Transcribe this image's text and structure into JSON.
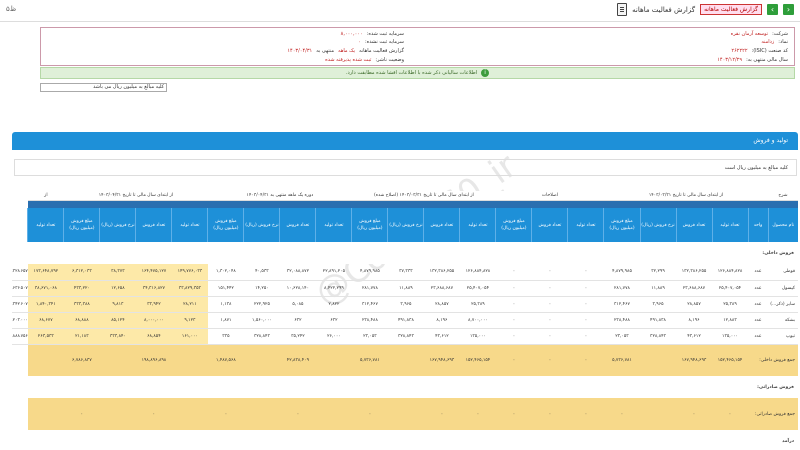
{
  "topbar": {
    "left_text": "۵ظ",
    "title": "گزارش فعالیت ماهانه",
    "badge": "گزارش فعالیت ماهانه",
    "nav_prev": "‹",
    "nav_next": "›"
  },
  "company_info": {
    "company_label": "شرکت:",
    "company_value": "توسعه آرمان نقره",
    "symbol_label": "نماد:",
    "symbol_value": "زدامنه",
    "isic_label": "کد صنعت (ISIC):",
    "isic_value": "۲۶۲۲۲۲",
    "fiscal_label": "سال مالی منتهی به:",
    "fiscal_value": "۱۴۰۳/۱۲/۲۹",
    "capital_label": "سرمایه ثبت شده:",
    "capital_value": "۸,۰۰۰,۰۰۰",
    "unreg_capital_label": "سرمایه ثبت نشده:",
    "unreg_capital_value": "۰",
    "report_label": "گزارش فعالیت ماهانه",
    "period_label": "یک ماهه",
    "period_value": "منتهی به",
    "period_date": "۱۴۰۳/۰۴/۳۱",
    "status_label": "وضعیت ناشر:",
    "status_value": "ثبت شده پذیرفته شده"
  },
  "success_message": "اطلاعات سالیانی ذکر شده با اطلاعات افشا شده مطابقت دارد.",
  "select_value": "کلیه مبالغ به میلیون ریال می باشد",
  "section": {
    "title": "تولید و فروش",
    "note": "کلیه مبالغ به میلیون ریال است"
  },
  "table": {
    "group_headers": [
      "شرح",
      "از ابتدای سال مالی تا تاریخ ۱۴۰۳/۰۳/۳۱",
      "اصلاحات",
      "از ابتدای سال مالی تا تاریخ ۱۴۰۳/۰۳/۳۱ (اصلاح شده)",
      "دوره یک ماهه منتهی به ۱۴۰۳/۰۴/۳۱",
      "از ابتدای سال مالی تا تاریخ ۱۴۰۳/۰۴/۳۱",
      "از"
    ],
    "col_headers": [
      "نام محصول",
      "واحد",
      "تعداد تولید",
      "تعداد فروش",
      "نرخ فروش (ریال)",
      "مبلغ فروش (میلیون ریال)",
      "تعداد تولید",
      "تعداد فروش",
      "مبلغ فروش (میلیون ریال)",
      "تعداد تولید",
      "تعداد فروش",
      "نرخ فروش (ریال)",
      "مبلغ فروش (میلیون ریال)",
      "تعداد تولید",
      "تعداد فروش",
      "نرخ فروش (ریال)",
      "مبلغ فروش (میلیون ریال)",
      "تعداد تولید",
      "تعداد فروش",
      "نرخ فروش (ریال)",
      "مبلغ فروش (میلیون ریال)",
      "تعداد تولید"
    ],
    "group_domestic": "فروش داخلی:",
    "rows": [
      {
        "name": "قوطی",
        "unit": "عدد",
        "cells": [
          "۱۲۶,۸۸۴,۸۲۸",
          "۱۳۲,۳۸۶,۲۵۵",
          "۳۲,۲۹۹",
          "۴,۸۷۹,۹۸۵",
          "۰",
          "۰",
          "۰",
          "۱۲۶,۸۸۴,۸۲۸",
          "۱۳۲,۳۸۶,۲۵۵",
          "۳۷,۳۳۳",
          "۴,۸۷۹,۹۸۵",
          "۲۲,۸۹۱,۲۰۵",
          "۳۲,۰۸۸,۸۷۲",
          "۴۰,۵۳۳",
          "۱,۳۰۲,۰۴۸",
          "۱۴۹,۷۷۶,۰۳۳",
          "۱۶۴,۴۷۵,۱۲۷",
          "۳۸,۳۷۳",
          "۶,۳۱۲,۰۳۳",
          "۱۷۳,۶۴۸,۷۹۲",
          "۱۶۴,۷۷۲,۶۵۷",
          "۳۸,۳۲۸"
        ]
      },
      {
        "name": "کپسول",
        "unit": "عدد",
        "cells": [
          "۲۵,۴۰۷,۰۵۴",
          "۲۳,۶۸۸,۶۸۷",
          "۱۱,۸۸۹",
          "۲۸۱,۷۷۸",
          "۰",
          "۰",
          "۰",
          "۲۵,۴۰۷,۰۵۴",
          "۲۳,۶۸۸,۶۸۷",
          "۱۱,۸۸۹",
          "۲۸۱,۷۷۸",
          "۸,۴۲۲,۲۹۹",
          "۱۰,۶۲۸,۱۴۰",
          "۱۴,۲۵۰",
          "۱۵۱,۴۴۲",
          "۳۳,۸۲۹,۳۵۳",
          "۳۴,۳۱۶,۸۲۷",
          "۱۲,۶۵۸",
          "۴۳۳,۲۲۰",
          "۳۸,۶۷۱,۰۶۸",
          "۳۸,۱۵۲,۵۰۷",
          "۱۳,۶۳۶"
        ]
      },
      {
        "name": "سایر (ذکر...)",
        "unit": "عدد",
        "cells": [
          "۲۵,۳۸۹",
          "۲۸,۸۵۷",
          "۳,۹۶۵",
          "۳۱۲,۴۶۷",
          "۰",
          "۰",
          "۰",
          "۲۵,۳۸۹",
          "۲۸,۸۵۷",
          "۳,۹۶۵",
          "۳۱۲,۴۶۷",
          "۲,۸۲۲",
          "۵,۰۸۵",
          "۲۲۲,۹۲۵",
          "۱,۱۳۸",
          "۲۸,۲۱۱",
          "۳۳,۹۴۲",
          "۹,۸۱۳",
          "۳۳۳,۳۸۸",
          "۱,۸۴۰,۳۴۱",
          "۱۷۸,۶۰۷",
          "۹,۳۴۲"
        ]
      },
      {
        "name": "بشکه",
        "unit": "عدد",
        "cells": [
          "۱۲,۸۸۳",
          "۸,۱۹۶",
          "۴۹۱,۸۳۸",
          "۲۳۸,۴۸۸",
          "۰",
          "۰",
          "۰",
          "۸,۷۰۰,۰۰۰",
          "۸,۱۹۶",
          "۴۹۱,۸۳۸",
          "۲۳۸,۴۸۸",
          "۶۳۲",
          "۶۳۲",
          "۱,۵۶۰,۰۰۰",
          "۱,۸۷۱",
          "۹,۱۲۳",
          "۸,۰۰۰,۰۰۰",
          "۸۵,۱۲۴",
          "۶۸,۸۸۸",
          "۶۸,۶۷۷",
          "۶۶,۰۰۰",
          "۶۶,۲۰۳"
        ]
      },
      {
        "name": "تیوپ",
        "unit": "عدد",
        "cells": [
          "۱۳۵,۰۰۰",
          "۴۳,۶۱۲",
          "۳۲۸,۸۴۳",
          "۲۳,۰۵۳",
          "۰",
          "۰",
          "۰",
          "۱۳۵,۰۰۰",
          "۴۳,۶۱۲",
          "۳۲۸,۸۴۳",
          "۲۳,۰۵۳",
          "۲۶,۰۰۰",
          "۳۵,۲۴۲",
          "۳۲۸,۸۴۳",
          "۳۳۵",
          "۱۶۱,۰۰۰",
          "۶۸,۸۵۴",
          "۳۳۳,۸۴۰",
          "۲۱,۱۸۳",
          "۲۶۳,۵۳۳",
          "۹,۷۵۶",
          "۵,۸۸۸"
        ]
      }
    ],
    "total_domestic": {
      "name": "جمع فروش داخلی:",
      "cells": [
        "۱۵۲,۴۶۵,۱۵۴",
        "۱۶۷,۹۴۸,۶۹۳",
        "",
        "۵,۷۳۶,۷۸۱",
        "۰",
        "۰",
        "۰",
        "۱۵۲,۴۶۵,۱۵۴",
        "۱۶۷,۹۴۸,۶۹۳",
        "",
        "۵,۷۳۶,۷۸۱",
        "",
        "۴۲,۸۳۸,۴۰۹",
        "",
        "۱,۴۸۷,۵۶۸",
        "",
        "۱۹۸,۸۹۶,۸۹۸",
        "",
        "۶,۷۸۶,۸۳۷",
        "",
        "۱۷۱,۰۹۸,۷۳۸",
        "۱۸۵,۷۸۰,۸۳۴"
      ]
    },
    "group_export": "فروش صادراتی:",
    "total_export": {
      "name": "جمع فروش صادراتی:",
      "cells": [
        "۰",
        "۰",
        "",
        "۰",
        "۰",
        "۰",
        "۰",
        "۰",
        "۰",
        "",
        "۰",
        "",
        "۰",
        "",
        "۰",
        "",
        "۰",
        "",
        "۰",
        "",
        "۰",
        "۰"
      ]
    },
    "group_services": "درآمد"
  },
  "watermark": "@Codal360_ir"
}
